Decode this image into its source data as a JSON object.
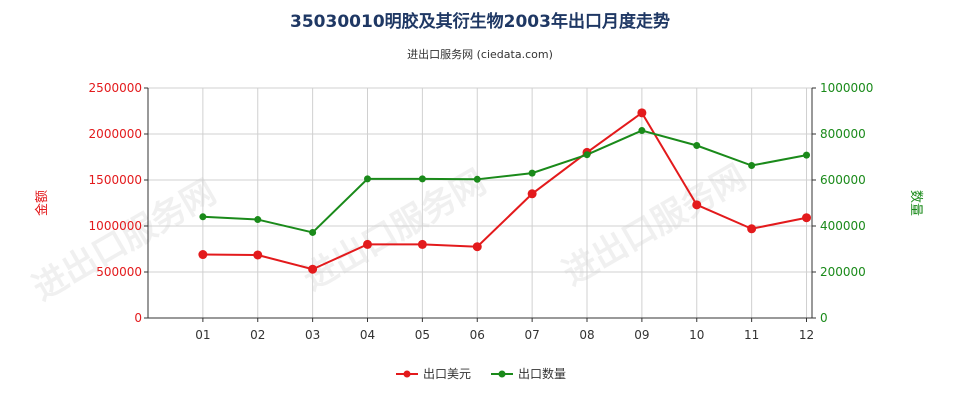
{
  "colors": {
    "title": "#1f3864",
    "left_axis": "#e31a1c",
    "right_axis": "#1a8a1a",
    "grid": "#d0d0d0",
    "axis_line": "#333333",
    "watermark": "#dddddd"
  },
  "chart_data": {
    "type": "line",
    "title": "35030010明胶及其衍生物2003年出口月度走势",
    "subtitle": "进出口服务网 (ciedata.com)",
    "watermark": "进出口服务网",
    "categories": [
      "01",
      "02",
      "03",
      "04",
      "05",
      "06",
      "07",
      "08",
      "09",
      "10",
      "11",
      "12"
    ],
    "y_left": {
      "label": "金额",
      "min": 0,
      "max": 2500000,
      "ticks": [
        0,
        500000,
        1000000,
        1500000,
        2000000,
        2500000
      ]
    },
    "y_right": {
      "label": "数量",
      "min": 0,
      "max": 1000000,
      "ticks": [
        0,
        200000,
        400000,
        600000,
        800000,
        1000000
      ]
    },
    "series": [
      {
        "name": "出口美元",
        "axis": "left",
        "color": "#e31a1c",
        "values": [
          690000,
          685000,
          530000,
          800000,
          800000,
          775000,
          1350000,
          1800000,
          2230000,
          1230000,
          970000,
          1090000
        ]
      },
      {
        "name": "出口数量",
        "axis": "right",
        "color": "#1a8a1a",
        "values": [
          440000,
          428000,
          372000,
          605000,
          605000,
          603000,
          630000,
          710000,
          815000,
          750000,
          663000,
          708000
        ]
      }
    ],
    "grid": true,
    "legend_position": "bottom"
  }
}
